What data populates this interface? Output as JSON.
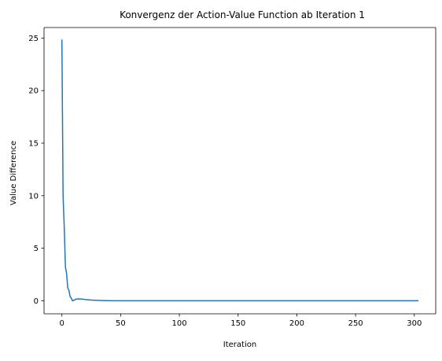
{
  "chart_data": {
    "type": "line",
    "title": "Konvergenz der Action-Value Function ab Iteration 1",
    "xlabel": "Iteration",
    "ylabel": "Value Difference",
    "xlim": [
      -15.2,
      318.2
    ],
    "ylim": [
      -1.24,
      26.0
    ],
    "xticks": [
      0,
      50,
      100,
      150,
      200,
      250,
      300
    ],
    "yticks": [
      0,
      5,
      10,
      15,
      20,
      25
    ],
    "grid": false,
    "colors": {
      "line": "#1f77b4",
      "axes": "#000000"
    },
    "series": [
      {
        "x": [
          0,
          1,
          2,
          3,
          4,
          5,
          6,
          7,
          8,
          9,
          10,
          11,
          12,
          14,
          16,
          18,
          20,
          22,
          25,
          28,
          30,
          35,
          40,
          45,
          50,
          60,
          70,
          80,
          100,
          150,
          200,
          250,
          303
        ],
        "values": [
          24.8,
          10.0,
          7.0,
          3.2,
          2.6,
          1.2,
          1.0,
          0.4,
          0.25,
          0.0,
          0.05,
          0.1,
          0.15,
          0.18,
          0.17,
          0.15,
          0.12,
          0.1,
          0.07,
          0.05,
          0.04,
          0.02,
          0.01,
          0.005,
          0.0,
          0.0,
          0.0,
          0.0,
          0.0,
          0.0,
          0.0,
          0.0,
          0.0
        ]
      }
    ]
  }
}
